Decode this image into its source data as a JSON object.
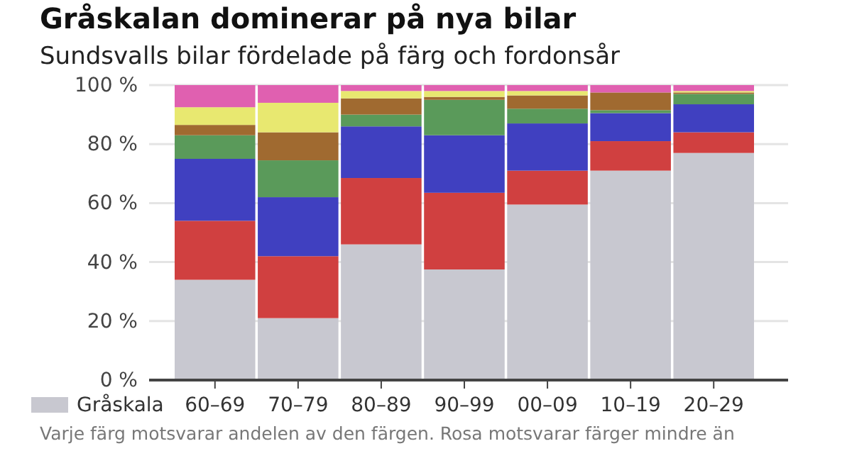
{
  "chart_data": {
    "type": "bar",
    "stacked": true,
    "title": "Gråskalan dominerar på nya bilar",
    "subtitle": "Sundsvalls bilar fördelade på färg och fordonsår",
    "categories": [
      "60–69",
      "70–79",
      "80–89",
      "90–99",
      "00–09",
      "10–19",
      "20–29"
    ],
    "series": [
      {
        "name": "Gråskala",
        "color": "#c8c8d0",
        "values": [
          34,
          21,
          46,
          37.5,
          59.5,
          71,
          77
        ]
      },
      {
        "color": "#d04040",
        "values": [
          20,
          21,
          22.5,
          26,
          11.5,
          10,
          7
        ]
      },
      {
        "color": "#4040c0",
        "values": [
          21,
          20,
          17.5,
          19.5,
          16,
          9.5,
          9.5
        ]
      },
      {
        "color": "#5a9a5a",
        "values": [
          8,
          12.5,
          4,
          12,
          5,
          1,
          3.5
        ]
      },
      {
        "color": "#a06a30",
        "values": [
          3.5,
          9.5,
          5.5,
          1,
          4.5,
          6,
          0.5
        ]
      },
      {
        "color": "#e8e870",
        "values": [
          6,
          10,
          2.5,
          2,
          1.5,
          0,
          0.5
        ]
      },
      {
        "color": "#e060b0",
        "values": [
          7.5,
          6,
          2,
          2,
          2,
          2.5,
          2
        ]
      }
    ],
    "ylim": [
      0,
      100
    ],
    "yticks": [
      {
        "value": 0,
        "label": "0 %"
      },
      {
        "value": 20,
        "label": "20 %"
      },
      {
        "value": 40,
        "label": "40 %"
      },
      {
        "value": 60,
        "label": "60 %"
      },
      {
        "value": 80,
        "label": "80 %"
      },
      {
        "value": 100,
        "label": "100 %"
      }
    ],
    "grid": "y",
    "legend": "bottom left",
    "annotations": [
      "Varje färg motsvarar andelen av den färgen. Rosa motsvarar färger mindre än"
    ]
  }
}
